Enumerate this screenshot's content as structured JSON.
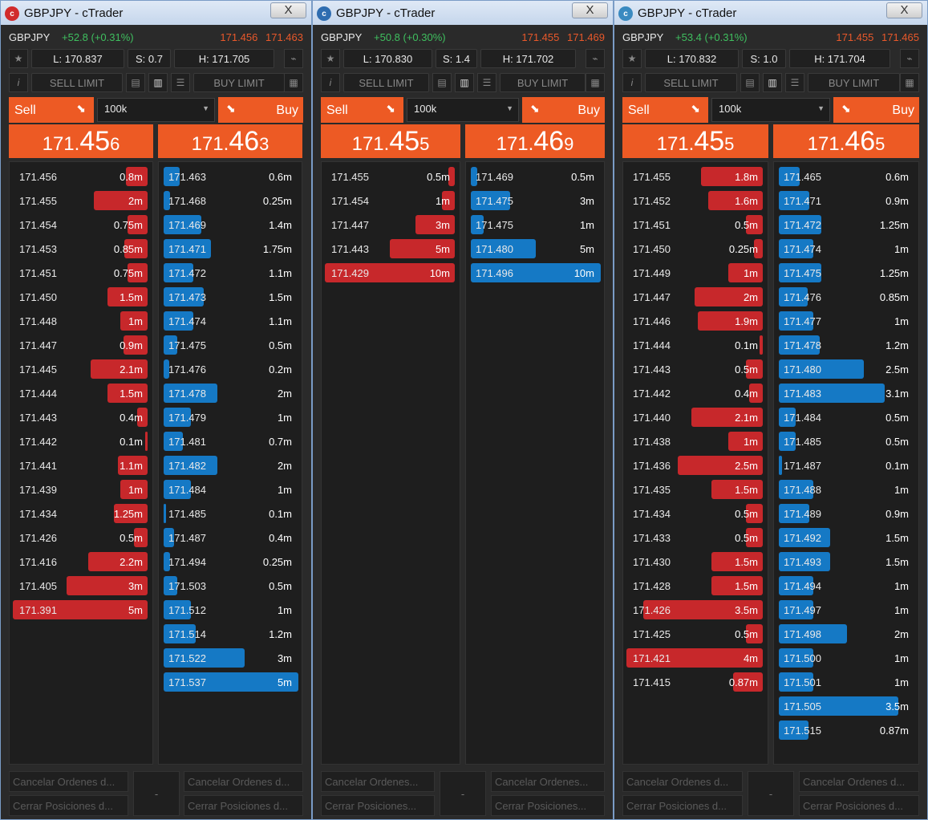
{
  "colors": {
    "sell": "#c7282b",
    "buy": "#1579c5",
    "orange": "#ed5a24",
    "green": "#3fbf5f"
  },
  "windows": [
    {
      "title": "GBPJPY - cTrader",
      "close": "X",
      "symbol": "GBPJPY",
      "change": "+52.8 (+0.31%)",
      "bid": "171.456",
      "ask": "171.463",
      "low": "L: 170.837",
      "spread": "S: 0.7",
      "high": "H: 171.705",
      "sell_limit": "SELL LIMIT",
      "buy_limit": "BUY LIMIT",
      "sell": "Sell",
      "buy": "Buy",
      "qty": "100k",
      "sell_price": {
        "a": "171.",
        "b": "45",
        "c": "6"
      },
      "buy_price": {
        "a": "171.",
        "b": "46",
        "c": "3"
      },
      "bids": [
        [
          "171.456",
          "0.8m"
        ],
        [
          "171.455",
          "2m"
        ],
        [
          "171.454",
          "0.75m"
        ],
        [
          "171.453",
          "0.85m"
        ],
        [
          "171.451",
          "0.75m"
        ],
        [
          "171.450",
          "1.5m"
        ],
        [
          "171.448",
          "1m"
        ],
        [
          "171.447",
          "0.9m"
        ],
        [
          "171.445",
          "2.1m"
        ],
        [
          "171.444",
          "1.5m"
        ],
        [
          "171.443",
          "0.4m"
        ],
        [
          "171.442",
          "0.1m"
        ],
        [
          "171.441",
          "1.1m"
        ],
        [
          "171.439",
          "1m"
        ],
        [
          "171.434",
          "1.25m"
        ],
        [
          "171.426",
          "0.5m"
        ],
        [
          "171.416",
          "2.2m"
        ],
        [
          "171.405",
          "3m"
        ],
        [
          "171.391",
          "5m"
        ]
      ],
      "asks": [
        [
          "171.463",
          "0.6m"
        ],
        [
          "171.468",
          "0.25m"
        ],
        [
          "171.469",
          "1.4m"
        ],
        [
          "171.471",
          "1.75m"
        ],
        [
          "171.472",
          "1.1m"
        ],
        [
          "171.473",
          "1.5m"
        ],
        [
          "171.474",
          "1.1m"
        ],
        [
          "171.475",
          "0.5m"
        ],
        [
          "171.476",
          "0.2m"
        ],
        [
          "171.478",
          "2m"
        ],
        [
          "171.479",
          "1m"
        ],
        [
          "171.481",
          "0.7m"
        ],
        [
          "171.482",
          "2m"
        ],
        [
          "171.484",
          "1m"
        ],
        [
          "171.485",
          "0.1m"
        ],
        [
          "171.487",
          "0.4m"
        ],
        [
          "171.494",
          "0.25m"
        ],
        [
          "171.503",
          "0.5m"
        ],
        [
          "171.512",
          "1m"
        ],
        [
          "171.514",
          "1.2m"
        ],
        [
          "171.522",
          "3m"
        ],
        [
          "171.537",
          "5m"
        ]
      ],
      "footer": {
        "cancel_l": "Cancelar Ordenes d...",
        "close_l": "Cerrar Posiciones d...",
        "mid": "-",
        "cancel_r": "Cancelar Ordenes d...",
        "close_r": "Cerrar Posiciones d..."
      }
    },
    {
      "title": "GBPJPY - cTrader",
      "close": "X",
      "symbol": "GBPJPY",
      "change": "+50.8 (+0.30%)",
      "bid": "171.455",
      "ask": "171.469",
      "low": "L: 170.830",
      "spread": "S: 1.4",
      "high": "H: 171.702",
      "sell_limit": "SELL LIMIT",
      "buy_limit": "BUY LIMIT",
      "sell": "Sell",
      "buy": "Buy",
      "qty": "100k",
      "sell_price": {
        "a": "171.",
        "b": "45",
        "c": "5"
      },
      "buy_price": {
        "a": "171.",
        "b": "46",
        "c": "9"
      },
      "bids": [
        [
          "171.455",
          "0.5m"
        ],
        [
          "171.454",
          "1m"
        ],
        [
          "171.447",
          "3m"
        ],
        [
          "171.443",
          "5m"
        ],
        [
          "171.429",
          "10m"
        ]
      ],
      "asks": [
        [
          "171.469",
          "0.5m"
        ],
        [
          "171.475",
          "3m"
        ],
        [
          "171.475",
          "1m"
        ],
        [
          "171.480",
          "5m"
        ],
        [
          "171.496",
          "10m"
        ]
      ],
      "footer": {
        "cancel_l": "Cancelar Ordenes...",
        "close_l": "Cerrar Posiciones...",
        "mid": "-",
        "cancel_r": "Cancelar Ordenes...",
        "close_r": "Cerrar Posiciones..."
      }
    },
    {
      "title": "GBPJPY - cTrader",
      "close": "X",
      "symbol": "GBPJPY",
      "change": "+53.4 (+0.31%)",
      "bid": "171.455",
      "ask": "171.465",
      "low": "L: 170.832",
      "spread": "S: 1.0",
      "high": "H: 171.704",
      "sell_limit": "SELL LIMIT",
      "buy_limit": "BUY LIMIT",
      "sell": "Sell",
      "buy": "Buy",
      "qty": "100k",
      "sell_price": {
        "a": "171.",
        "b": "45",
        "c": "5"
      },
      "buy_price": {
        "a": "171.",
        "b": "46",
        "c": "5"
      },
      "bids": [
        [
          "171.455",
          "1.8m"
        ],
        [
          "171.452",
          "1.6m"
        ],
        [
          "171.451",
          "0.5m"
        ],
        [
          "171.450",
          "0.25m"
        ],
        [
          "171.449",
          "1m"
        ],
        [
          "171.447",
          "2m"
        ],
        [
          "171.446",
          "1.9m"
        ],
        [
          "171.444",
          "0.1m"
        ],
        [
          "171.443",
          "0.5m"
        ],
        [
          "171.442",
          "0.4m"
        ],
        [
          "171.440",
          "2.1m"
        ],
        [
          "171.438",
          "1m"
        ],
        [
          "171.436",
          "2.5m"
        ],
        [
          "171.435",
          "1.5m"
        ],
        [
          "171.434",
          "0.5m"
        ],
        [
          "171.433",
          "0.5m"
        ],
        [
          "171.430",
          "1.5m"
        ],
        [
          "171.428",
          "1.5m"
        ],
        [
          "171.426",
          "3.5m"
        ],
        [
          "171.425",
          "0.5m"
        ],
        [
          "171.421",
          "4m"
        ],
        [
          "171.415",
          "0.87m"
        ]
      ],
      "asks": [
        [
          "171.465",
          "0.6m"
        ],
        [
          "171.471",
          "0.9m"
        ],
        [
          "171.472",
          "1.25m"
        ],
        [
          "171.474",
          "1m"
        ],
        [
          "171.475",
          "1.25m"
        ],
        [
          "171.476",
          "0.85m"
        ],
        [
          "171.477",
          "1m"
        ],
        [
          "171.478",
          "1.2m"
        ],
        [
          "171.480",
          "2.5m"
        ],
        [
          "171.483",
          "3.1m"
        ],
        [
          "171.484",
          "0.5m"
        ],
        [
          "171.485",
          "0.5m"
        ],
        [
          "171.487",
          "0.1m"
        ],
        [
          "171.488",
          "1m"
        ],
        [
          "171.489",
          "0.9m"
        ],
        [
          "171.492",
          "1.5m"
        ],
        [
          "171.493",
          "1.5m"
        ],
        [
          "171.494",
          "1m"
        ],
        [
          "171.497",
          "1m"
        ],
        [
          "171.498",
          "2m"
        ],
        [
          "171.500",
          "1m"
        ],
        [
          "171.501",
          "1m"
        ],
        [
          "171.505",
          "3.5m"
        ],
        [
          "171.515",
          "0.87m"
        ]
      ],
      "footer": {
        "cancel_l": "Cancelar Ordenes d...",
        "close_l": "Cerrar Posiciones d...",
        "mid": "-",
        "cancel_r": "Cancelar Ordenes d...",
        "close_r": "Cerrar Posiciones d..."
      }
    }
  ]
}
